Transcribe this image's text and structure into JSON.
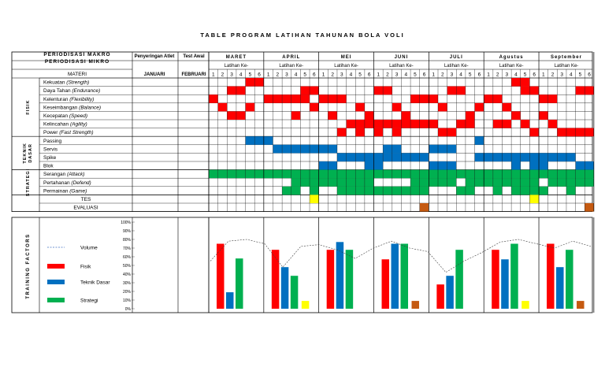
{
  "title": "TABLE PROGRAM LATIHAN TAHUNAN BOLA VOLI",
  "header": {
    "macro_label": "PERIODISASI MAKRO",
    "micro_label": "PERIODISASI MIKRO",
    "materi_label": "MATERI",
    "selection_label": "Penyeringan Atlet",
    "selection_month": "JANUARI",
    "test_label": "Test Awal",
    "test_month": "FEBRUARI",
    "sub_label": "Latihan Ke-",
    "months": [
      "MARET",
      "APRIL",
      "MEI",
      "JUNI",
      "JULI",
      "Agustus",
      "September"
    ]
  },
  "groups": [
    {
      "label": "FISIK",
      "start": 0,
      "end": 7
    },
    {
      "label": "TEKNIK DASAR",
      "start": 7,
      "end": 11
    },
    {
      "label": "STRATEGI",
      "start": 11,
      "end": 14
    }
  ],
  "rows": [
    {
      "name": "Kekuatan",
      "note": "(Strength)",
      "color": "#ff0000",
      "cells": [
        4,
        5,
        33,
        34
      ]
    },
    {
      "name": "Daya Tahan",
      "note": "(Endurance)",
      "color": "#ff0000",
      "cells": [
        2,
        3,
        10,
        11,
        18,
        19,
        26,
        27,
        34,
        35,
        40,
        41
      ]
    },
    {
      "name": "Kelenturan",
      "note": "(Flexibility)",
      "color": "#ff0000",
      "cells": [
        0,
        6,
        7,
        8,
        9,
        10,
        12,
        13,
        14,
        22,
        23,
        24,
        30,
        31,
        36,
        37
      ]
    },
    {
      "name": "Keseimbangan",
      "note": "(Balance)",
      "color": "#ff0000",
      "cells": [
        1,
        4,
        11,
        16,
        20,
        25,
        29,
        32
      ]
    },
    {
      "name": "Kecepatan",
      "note": "(Speed)",
      "color": "#ff0000",
      "cells": [
        2,
        3,
        9,
        13,
        17,
        21,
        28,
        33,
        36
      ]
    },
    {
      "name": "Kelincahan",
      "note": "(Agility)",
      "color": "#ff0000",
      "cells": [
        15,
        16,
        17,
        18,
        19,
        20,
        21,
        22,
        23,
        24,
        27,
        28,
        31,
        32,
        34,
        37
      ]
    },
    {
      "name": "Power",
      "note": "(Fast Strength)",
      "color": "#ff0000",
      "cells": [
        14,
        16,
        18,
        20,
        25,
        26,
        35,
        38,
        39,
        40,
        41
      ]
    },
    {
      "name": "Passing",
      "note": "",
      "color": "#0070c0",
      "cells": [
        4,
        5,
        6,
        29
      ]
    },
    {
      "name": "Servis",
      "note": "",
      "color": "#0070c0",
      "cells": [
        7,
        8,
        9,
        10,
        11,
        12,
        13,
        19,
        20,
        24,
        25,
        26
      ]
    },
    {
      "name": "Spike",
      "note": "",
      "color": "#0070c0",
      "cells": [
        14,
        15,
        16,
        17,
        18,
        19,
        20,
        21,
        22,
        23,
        29,
        30,
        31,
        32,
        33,
        34,
        35,
        36,
        37,
        38,
        39
      ]
    },
    {
      "name": "Blok",
      "note": "",
      "color": "#0070c0",
      "cells": [
        12,
        13,
        17,
        18,
        24,
        25,
        26,
        33,
        35,
        36,
        40,
        41
      ]
    },
    {
      "name": "Serangan",
      "note": "(Attack)",
      "color": "#00b050",
      "cells": [
        0,
        1,
        2,
        3,
        4,
        5,
        6,
        7,
        8,
        9,
        10,
        11,
        12,
        13,
        14,
        15,
        16,
        17,
        18,
        19,
        20,
        21,
        22,
        23,
        24,
        25,
        26,
        27,
        28,
        29,
        30,
        31,
        32,
        33,
        34,
        35,
        36,
        37,
        38,
        39,
        40,
        41
      ]
    },
    {
      "name": "Pertahanan",
      "note": "(Defend)",
      "color": "#00b050",
      "cells": [
        9,
        10,
        11,
        12,
        13,
        14,
        15,
        16,
        17,
        22,
        23,
        24,
        25,
        26,
        28,
        29,
        30,
        31,
        32,
        33,
        34,
        35,
        37,
        38,
        39,
        40,
        41
      ]
    },
    {
      "name": "Permainan",
      "note": "(Game)",
      "color": "#00b050",
      "cells": [
        8,
        9,
        11,
        14,
        15,
        16,
        17,
        18,
        19,
        20,
        21,
        22,
        23,
        27,
        28,
        31,
        33,
        34,
        35,
        36,
        39
      ]
    },
    {
      "name": "TES",
      "note": "",
      "color": "#ffff00",
      "cells": [
        11,
        35
      ]
    },
    {
      "name": "EVALUASI",
      "note": "",
      "color": "#c55a11",
      "cells": [
        23,
        41
      ]
    }
  ],
  "factors": {
    "label": "TRAINING FACTORS",
    "yticks": [
      "100%",
      "90%",
      "80%",
      "70%",
      "60%",
      "50%",
      "40%",
      "30%",
      "20%",
      "10%",
      "0%"
    ],
    "legend": [
      {
        "name": "Volume",
        "color": "#4472c4",
        "dashed": true
      },
      {
        "name": "Fisik",
        "color": "#ff0000"
      },
      {
        "name": "Teknik Dasar",
        "color": "#0070c0"
      },
      {
        "name": "Strategi",
        "color": "#00b050"
      }
    ],
    "series": [
      {
        "name": "Fisik",
        "color": "#ff0000",
        "values": [
          75,
          68,
          68,
          57,
          28,
          68,
          75
        ]
      },
      {
        "name": "Teknik Dasar",
        "color": "#0070c0",
        "values": [
          19,
          48,
          77,
          75,
          38,
          57,
          48
        ]
      },
      {
        "name": "Strategi",
        "color": "#00b050",
        "values": [
          58,
          38,
          68,
          75,
          68,
          75,
          68
        ]
      },
      {
        "name": "Extra",
        "color": "",
        "values": [
          0,
          9,
          0,
          9,
          0,
          9,
          9
        ]
      }
    ],
    "extra_colors": [
      "#ffff00",
      "#ffff00",
      "#ffff00",
      "#c55a11",
      "#ffff00",
      "#ffff00",
      "#c55a11"
    ],
    "volume": [
      55,
      78,
      80,
      75,
      48,
      72,
      74,
      68,
      58,
      70,
      78,
      70,
      66,
      42,
      55,
      65,
      77,
      80,
      75,
      70,
      78,
      72
    ]
  }
}
